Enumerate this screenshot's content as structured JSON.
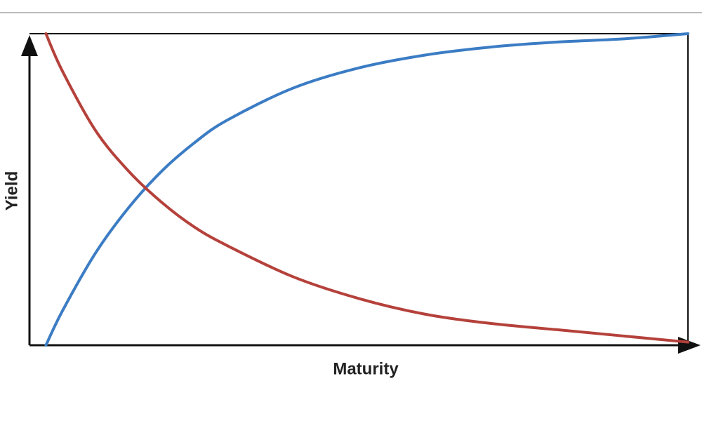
{
  "chart_data": {
    "type": "line",
    "x_label": "Maturity",
    "y_label": "Yield",
    "x": [
      2.5,
      5,
      10,
      15,
      20,
      25,
      30,
      40,
      50,
      60,
      70,
      80,
      90,
      100
    ],
    "series": [
      {
        "color": "#3b7cc4",
        "values": [
          0,
          11,
          29.5,
          44,
          55.7,
          64.9,
          72.2,
          82.5,
          89,
          93.1,
          95.7,
          97.3,
          98.3,
          100
        ]
      },
      {
        "color": "#b5413b",
        "values": [
          100,
          88,
          69,
          56,
          46,
          38,
          32,
          22,
          15,
          10,
          7,
          5,
          3,
          1
        ]
      }
    ],
    "xlim": [
      0,
      100
    ],
    "ylim": [
      0,
      100
    ]
  }
}
